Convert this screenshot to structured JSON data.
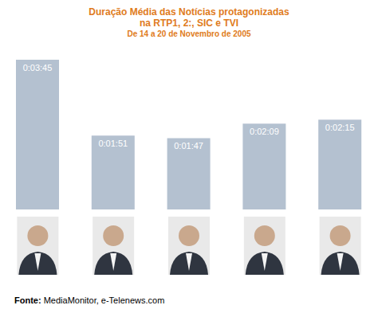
{
  "chart_data": {
    "type": "bar",
    "title": [
      "Duração Média das Notícias protagonizadas",
      "na RTP1, 2:, SIC e TVI"
    ],
    "subtitle": "De 14 a 20 de Novembro de 2005",
    "source": {
      "label": "Fonte:",
      "text": "MediaMonitor, e-Telenews.com"
    },
    "categories": [
      null,
      null,
      null,
      null,
      null
    ],
    "values": [
      225,
      111,
      107,
      129,
      135
    ],
    "value_labels": [
      "0:03:45",
      "0:01:51",
      "0:01:47",
      "0:02:09",
      "0:02:15"
    ],
    "color": "#b4c1d0",
    "ylim": [
      0,
      225
    ],
    "data_labels": true,
    "tick_labels": false,
    "grid": false
  }
}
